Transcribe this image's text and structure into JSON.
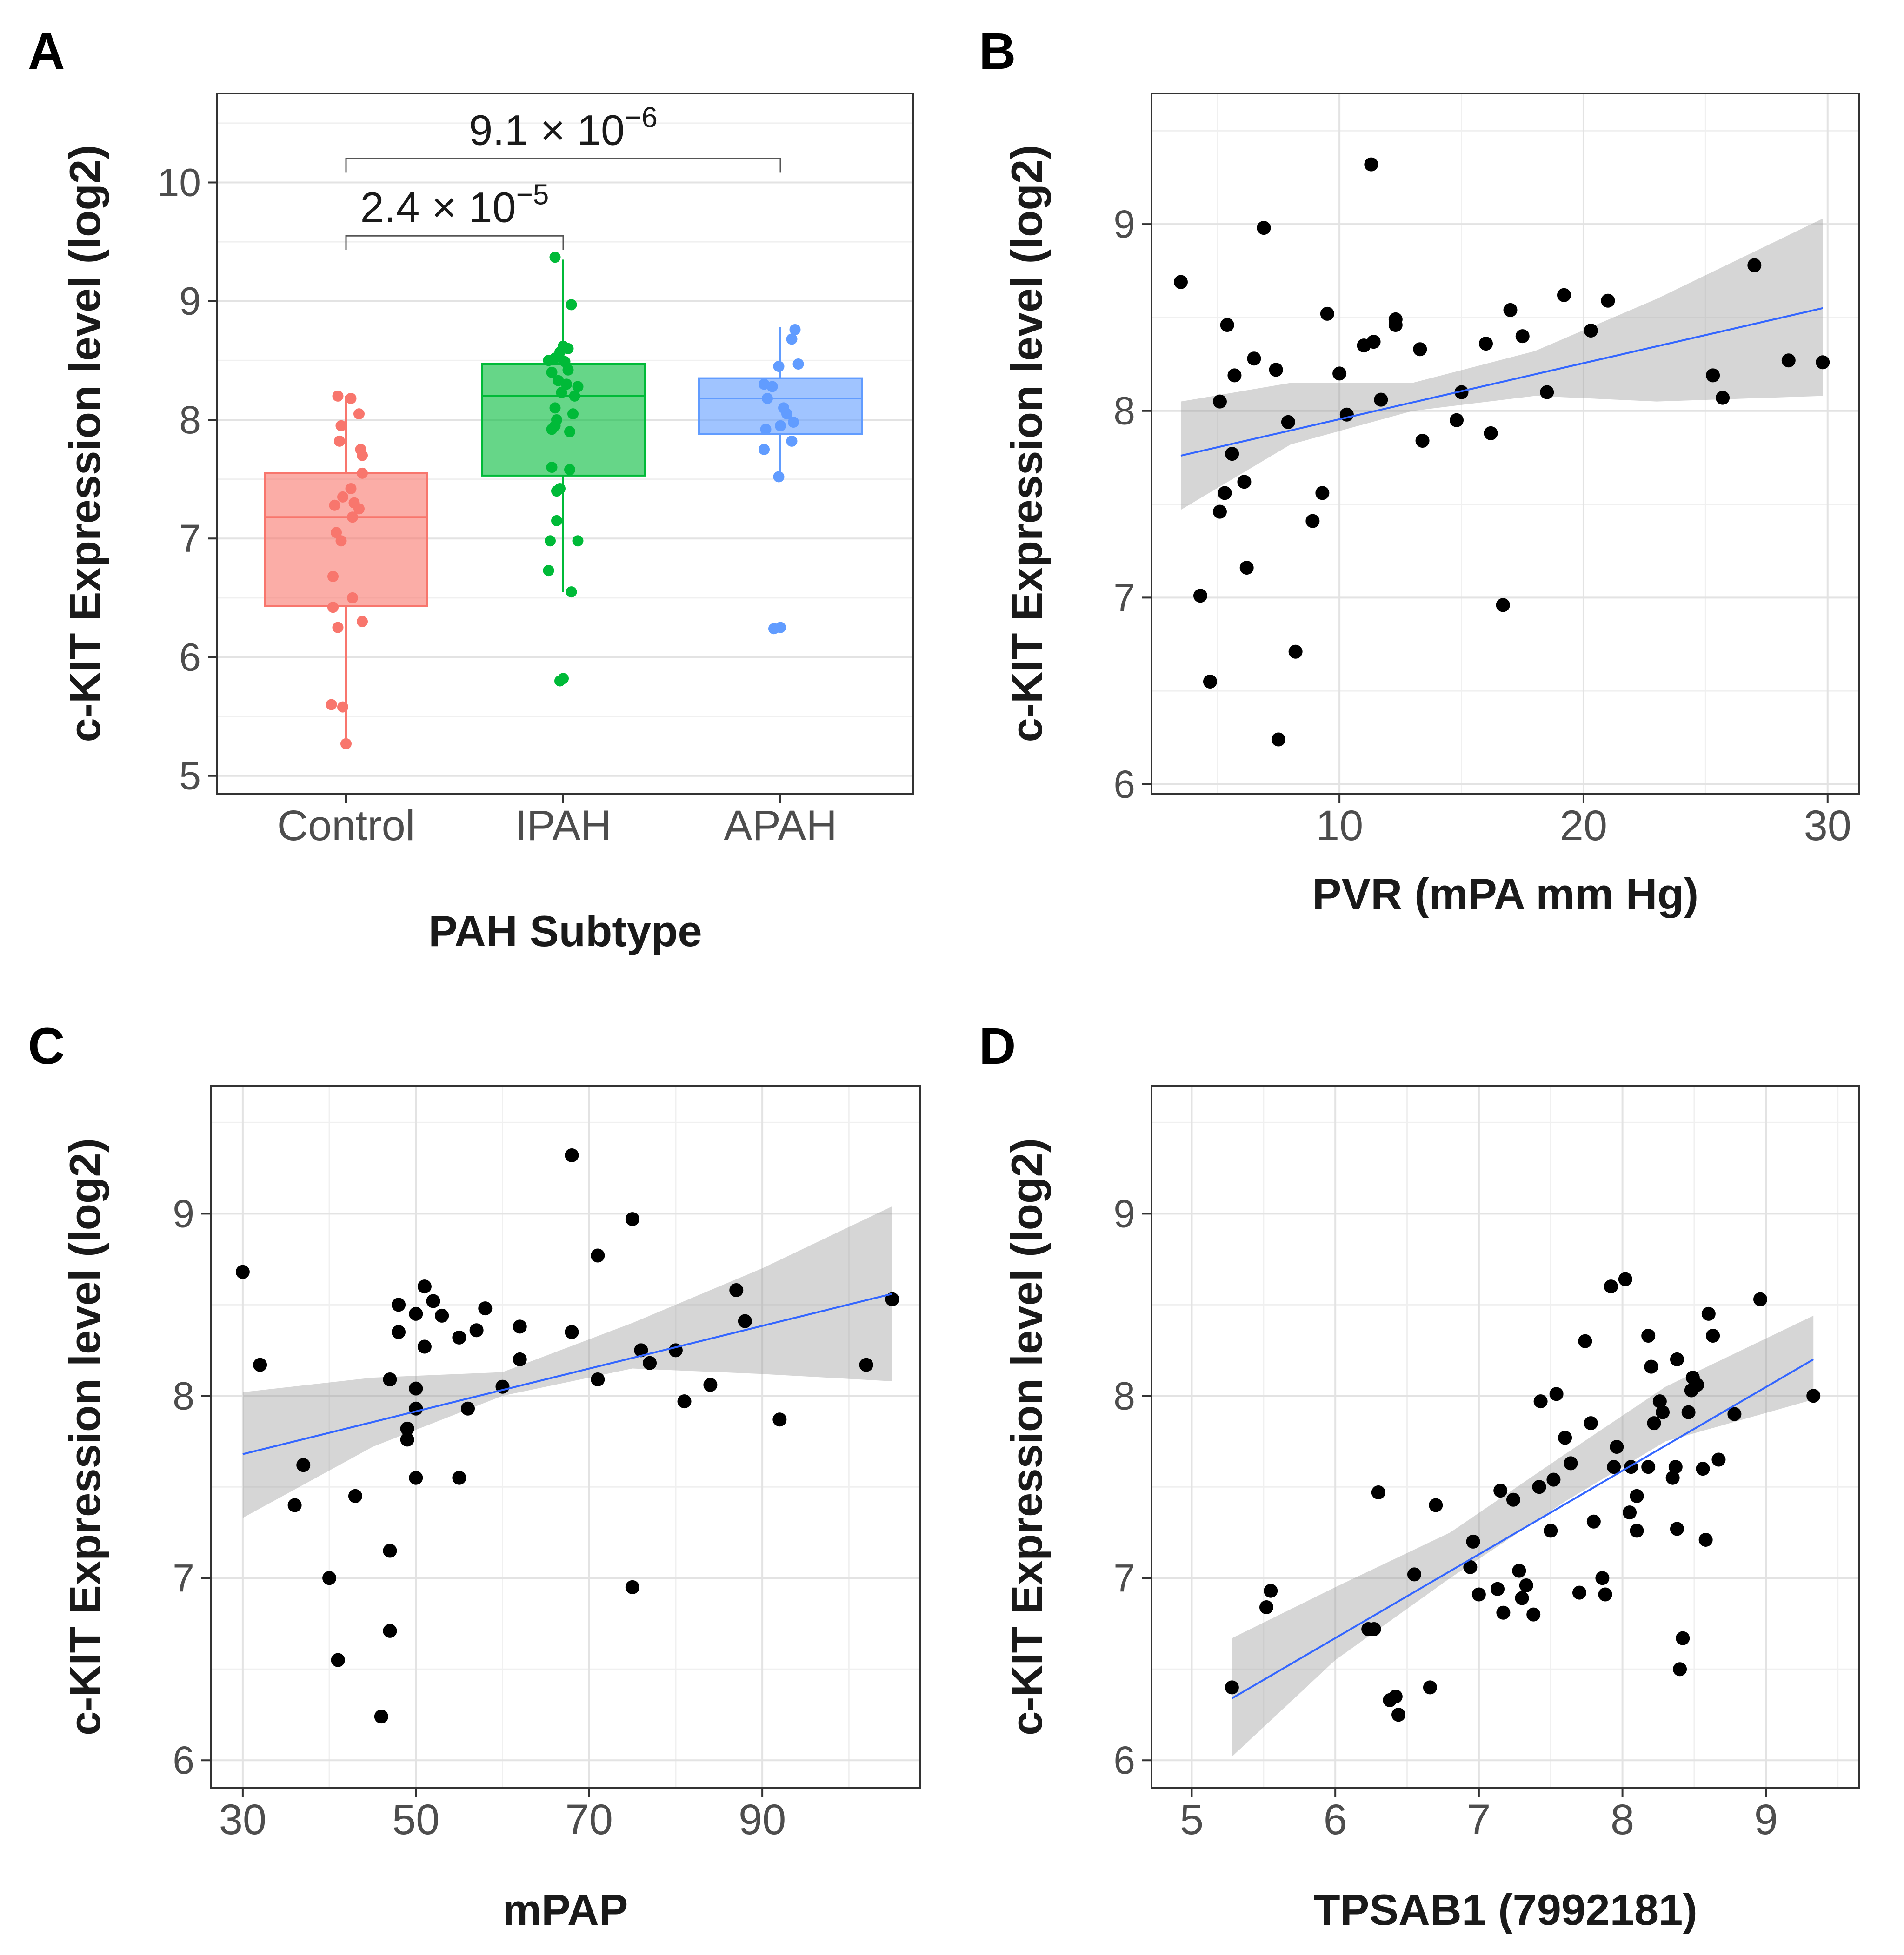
{
  "chart_data": [
    {
      "panel_label": "A",
      "type": "box",
      "title": "",
      "xlabel": "PAH Subtype",
      "ylabel": "c-KIT Expression level (log2)",
      "ylim": [
        4.85,
        10.75
      ],
      "yticks": [
        "5",
        "6",
        "7",
        "8",
        "9",
        "10"
      ],
      "categories": [
        "Control",
        "IPAH",
        "APAH"
      ],
      "colors": [
        "#F8766D",
        "#00BA38",
        "#619CFF"
      ],
      "boxes": [
        {
          "name": "Control",
          "q1": 6.43,
          "median": 7.18,
          "q3": 7.55,
          "whisker_low": 5.27,
          "whisker_high": 8.2,
          "points": [
            [
              -0.05,
              8.2
            ],
            [
              0.03,
              8.18
            ],
            [
              -0.03,
              7.95
            ],
            [
              0.08,
              8.05
            ],
            [
              -0.04,
              7.82
            ],
            [
              0.09,
              7.75
            ],
            [
              0.1,
              7.7
            ],
            [
              0.1,
              7.55
            ],
            [
              0.03,
              7.42
            ],
            [
              -0.02,
              7.35
            ],
            [
              0.05,
              7.3
            ],
            [
              -0.07,
              7.28
            ],
            [
              0.08,
              7.25
            ],
            [
              0.04,
              7.18
            ],
            [
              -0.06,
              7.05
            ],
            [
              -0.03,
              6.98
            ],
            [
              -0.08,
              6.68
            ],
            [
              0.04,
              6.5
            ],
            [
              -0.08,
              6.42
            ],
            [
              -0.05,
              6.25
            ],
            [
              0.1,
              6.3
            ],
            [
              -0.09,
              5.6
            ],
            [
              -0.02,
              5.58
            ],
            [
              0.0,
              5.27
            ]
          ]
        },
        {
          "name": "IPAH",
          "q1": 7.53,
          "median": 8.2,
          "q3": 8.47,
          "whisker_low": 6.55,
          "whisker_high": 9.35,
          "points": [
            [
              -0.05,
              9.37
            ],
            [
              0.05,
              8.97
            ],
            [
              0.0,
              8.62
            ],
            [
              -0.02,
              8.57
            ],
            [
              0.03,
              8.6
            ],
            [
              -0.05,
              8.52
            ],
            [
              -0.09,
              8.5
            ],
            [
              0.01,
              8.49
            ],
            [
              0.03,
              8.42
            ],
            [
              -0.07,
              8.4
            ],
            [
              -0.03,
              8.33
            ],
            [
              0.02,
              8.3
            ],
            [
              0.09,
              8.28
            ],
            [
              -0.01,
              8.23
            ],
            [
              0.07,
              8.2
            ],
            [
              -0.05,
              8.1
            ],
            [
              -0.04,
              8.0
            ],
            [
              0.06,
              8.05
            ],
            [
              -0.05,
              7.95
            ],
            [
              -0.07,
              7.92
            ],
            [
              0.04,
              7.9
            ],
            [
              -0.07,
              7.6
            ],
            [
              0.04,
              7.58
            ],
            [
              -0.04,
              7.4
            ],
            [
              -0.02,
              7.42
            ],
            [
              -0.04,
              7.15
            ],
            [
              0.09,
              6.98
            ],
            [
              -0.08,
              6.98
            ],
            [
              -0.09,
              6.73
            ],
            [
              0.05,
              6.55
            ],
            [
              0.0,
              5.82
            ],
            [
              -0.02,
              5.8
            ]
          ]
        },
        {
          "name": "APAH",
          "q1": 7.88,
          "median": 8.18,
          "q3": 8.35,
          "whisker_low": 7.52,
          "whisker_high": 8.78,
          "points": [
            [
              0.09,
              8.76
            ],
            [
              0.07,
              8.68
            ],
            [
              -0.01,
              8.45
            ],
            [
              0.11,
              8.47
            ],
            [
              -0.1,
              8.3
            ],
            [
              -0.05,
              8.28
            ],
            [
              -0.08,
              8.18
            ],
            [
              0.02,
              8.1
            ],
            [
              0.04,
              8.05
            ],
            [
              0.08,
              7.98
            ],
            [
              0.0,
              7.95
            ],
            [
              -0.09,
              7.92
            ],
            [
              0.07,
              7.82
            ],
            [
              -0.1,
              7.75
            ],
            [
              -0.01,
              7.52
            ],
            [
              -0.04,
              6.24
            ],
            [
              0.0,
              6.25
            ]
          ]
        }
      ],
      "annotations": [
        {
          "label": "9.1 × 10",
          "exp": "−6",
          "from": "Control",
          "to": "APAH",
          "y": 10.2
        },
        {
          "label": "2.4 × 10",
          "exp": "−5",
          "from": "Control",
          "to": "IPAH",
          "y": 9.55
        }
      ]
    },
    {
      "panel_label": "B",
      "type": "scatter",
      "title": "",
      "xlabel": "PVR (mPA mm Hg)",
      "ylabel": "c-KIT Expression level (log2)",
      "xlim": [
        2.3,
        31.3
      ],
      "ylim": [
        5.95,
        9.7
      ],
      "xticks": [
        10,
        20,
        30
      ],
      "yticks": [
        6,
        7,
        8,
        9
      ],
      "fit": {
        "x0": 3.5,
        "y0": 7.76,
        "x1": 29.8,
        "y1": 8.55,
        "band": [
          [
            3.5,
            7.47,
            8.05
          ],
          [
            8,
            7.82,
            8.15
          ],
          [
            13,
            8.0,
            8.15
          ],
          [
            18,
            8.08,
            8.32
          ],
          [
            23,
            8.05,
            8.6
          ],
          [
            29.8,
            8.08,
            9.03
          ]
        ]
      },
      "points": [
        [
          3.5,
          8.69
        ],
        [
          4.3,
          7.01
        ],
        [
          4.7,
          6.55
        ],
        [
          5.1,
          8.05
        ],
        [
          5.1,
          7.46
        ],
        [
          5.3,
          7.56
        ],
        [
          5.4,
          8.46
        ],
        [
          5.6,
          7.77
        ],
        [
          5.7,
          8.19
        ],
        [
          6.1,
          7.62
        ],
        [
          6.2,
          7.16
        ],
        [
          6.5,
          8.28
        ],
        [
          6.9,
          8.98
        ],
        [
          7.4,
          8.22
        ],
        [
          7.5,
          6.24
        ],
        [
          7.9,
          7.94
        ],
        [
          8.2,
          6.71
        ],
        [
          8.9,
          7.41
        ],
        [
          9.3,
          7.56
        ],
        [
          9.5,
          8.52
        ],
        [
          10.0,
          8.2
        ],
        [
          10.3,
          7.98
        ],
        [
          11.0,
          8.35
        ],
        [
          11.3,
          9.32
        ],
        [
          11.4,
          8.37
        ],
        [
          11.7,
          8.06
        ],
        [
          12.3,
          8.49
        ],
        [
          12.3,
          8.46
        ],
        [
          13.3,
          8.33
        ],
        [
          13.4,
          7.84
        ],
        [
          14.8,
          7.95
        ],
        [
          15.0,
          8.1
        ],
        [
          16.0,
          8.36
        ],
        [
          16.2,
          7.88
        ],
        [
          16.7,
          6.96
        ],
        [
          17.0,
          8.54
        ],
        [
          17.5,
          8.4
        ],
        [
          18.5,
          8.1
        ],
        [
          19.2,
          8.62
        ],
        [
          20.3,
          8.43
        ],
        [
          21.0,
          8.59
        ],
        [
          25.3,
          8.19
        ],
        [
          25.7,
          8.07
        ],
        [
          27.0,
          8.78
        ],
        [
          28.4,
          8.27
        ],
        [
          29.8,
          8.26
        ]
      ]
    },
    {
      "panel_label": "C",
      "type": "scatter",
      "title": "",
      "xlabel": "mPAP",
      "ylabel": "c-KIT Expression level (log2)",
      "xlim": [
        26.3,
        108.2
      ],
      "ylim": [
        5.85,
        9.7
      ],
      "xticks": [
        30,
        50,
        70,
        90
      ],
      "yticks": [
        6,
        7,
        8,
        9
      ],
      "fit": {
        "x0": 30,
        "y0": 7.68,
        "x1": 105,
        "y1": 8.56,
        "band": [
          [
            30,
            7.33,
            8.02
          ],
          [
            45,
            7.72,
            8.1
          ],
          [
            60,
            8.0,
            8.13
          ],
          [
            75,
            8.15,
            8.4
          ],
          [
            90,
            8.12,
            8.7
          ],
          [
            105,
            8.08,
            9.04
          ]
        ]
      },
      "points": [
        [
          30,
          8.68
        ],
        [
          32,
          8.17
        ],
        [
          36,
          7.4
        ],
        [
          37,
          7.62
        ],
        [
          40,
          7.0
        ],
        [
          41,
          6.55
        ],
        [
          43,
          7.45
        ],
        [
          46,
          6.24
        ],
        [
          47,
          8.09
        ],
        [
          47,
          7.15
        ],
        [
          47,
          6.71
        ],
        [
          48,
          8.5
        ],
        [
          48,
          8.35
        ],
        [
          49,
          7.82
        ],
        [
          49,
          7.76
        ],
        [
          50,
          8.45
        ],
        [
          50,
          8.04
        ],
        [
          50,
          7.93
        ],
        [
          50,
          7.55
        ],
        [
          51,
          8.6
        ],
        [
          51,
          8.27
        ],
        [
          52,
          8.52
        ],
        [
          53,
          8.44
        ],
        [
          55,
          8.32
        ],
        [
          55,
          7.55
        ],
        [
          56,
          7.93
        ],
        [
          57,
          8.36
        ],
        [
          58,
          8.48
        ],
        [
          60,
          8.05
        ],
        [
          62,
          8.38
        ],
        [
          62,
          8.2
        ],
        [
          68,
          9.32
        ],
        [
          68,
          8.35
        ],
        [
          71,
          8.77
        ],
        [
          71,
          8.09
        ],
        [
          75,
          8.97
        ],
        [
          75,
          6.95
        ],
        [
          76,
          8.25
        ],
        [
          77,
          8.18
        ],
        [
          80,
          8.25
        ],
        [
          81,
          7.97
        ],
        [
          84,
          8.06
        ],
        [
          87,
          8.58
        ],
        [
          88,
          8.41
        ],
        [
          92,
          7.87
        ],
        [
          102,
          8.17
        ],
        [
          105,
          8.53
        ]
      ]
    },
    {
      "panel_label": "D",
      "type": "scatter",
      "title": "",
      "xlabel": "TPSAB1 (7992181)",
      "ylabel": "c-KIT Expression level (log2)",
      "xlim": [
        4.72,
        9.65
      ],
      "ylim": [
        5.85,
        9.7
      ],
      "xticks": [
        5,
        6,
        7,
        8,
        9
      ],
      "yticks": [
        6,
        7,
        8,
        9
      ],
      "fit": {
        "x0": 5.28,
        "y0": 6.34,
        "x1": 9.33,
        "y1": 8.2,
        "band": [
          [
            5.28,
            6.02,
            6.67
          ],
          [
            6.0,
            6.55,
            6.95
          ],
          [
            6.8,
            7.0,
            7.25
          ],
          [
            7.6,
            7.42,
            7.68
          ],
          [
            8.3,
            7.75,
            8.05
          ],
          [
            9.33,
            7.98,
            8.44
          ]
        ]
      },
      "points": [
        [
          5.28,
          6.4
        ],
        [
          5.52,
          6.84
        ],
        [
          5.55,
          6.93
        ],
        [
          6.23,
          6.72
        ],
        [
          6.27,
          6.72
        ],
        [
          6.3,
          7.47
        ],
        [
          6.38,
          6.33
        ],
        [
          6.42,
          6.35
        ],
        [
          6.44,
          6.25
        ],
        [
          6.55,
          7.02
        ],
        [
          6.66,
          6.4
        ],
        [
          6.7,
          7.4
        ],
        [
          6.94,
          7.06
        ],
        [
          6.96,
          7.2
        ],
        [
          7.0,
          6.91
        ],
        [
          7.13,
          6.94
        ],
        [
          7.15,
          7.48
        ],
        [
          7.17,
          6.81
        ],
        [
          7.24,
          7.43
        ],
        [
          7.28,
          7.04
        ],
        [
          7.3,
          6.89
        ],
        [
          7.33,
          6.96
        ],
        [
          7.38,
          6.8
        ],
        [
          7.42,
          7.5
        ],
        [
          7.43,
          7.97
        ],
        [
          7.5,
          7.26
        ],
        [
          7.52,
          7.54
        ],
        [
          7.54,
          8.01
        ],
        [
          7.6,
          7.77
        ],
        [
          7.64,
          7.63
        ],
        [
          7.7,
          6.92
        ],
        [
          7.74,
          8.3
        ],
        [
          7.78,
          7.85
        ],
        [
          7.8,
          7.31
        ],
        [
          7.86,
          7.0
        ],
        [
          7.88,
          6.91
        ],
        [
          7.92,
          8.6
        ],
        [
          7.94,
          7.61
        ],
        [
          7.96,
          7.72
        ],
        [
          8.02,
          8.64
        ],
        [
          8.05,
          7.36
        ],
        [
          8.06,
          7.61
        ],
        [
          8.1,
          7.45
        ],
        [
          8.1,
          7.26
        ],
        [
          8.18,
          7.61
        ],
        [
          8.18,
          8.33
        ],
        [
          8.2,
          8.16
        ],
        [
          8.22,
          7.85
        ],
        [
          8.26,
          7.97
        ],
        [
          8.28,
          7.91
        ],
        [
          8.35,
          7.55
        ],
        [
          8.37,
          7.61
        ],
        [
          8.38,
          8.2
        ],
        [
          8.38,
          7.27
        ],
        [
          8.4,
          6.5
        ],
        [
          8.42,
          6.67
        ],
        [
          8.46,
          7.91
        ],
        [
          8.48,
          8.03
        ],
        [
          8.49,
          8.1
        ],
        [
          8.52,
          8.06
        ],
        [
          8.56,
          7.6
        ],
        [
          8.58,
          7.21
        ],
        [
          8.6,
          8.45
        ],
        [
          8.63,
          8.33
        ],
        [
          8.67,
          7.65
        ],
        [
          8.78,
          7.9
        ],
        [
          8.96,
          8.53
        ],
        [
          9.33,
          8.0
        ]
      ]
    }
  ]
}
